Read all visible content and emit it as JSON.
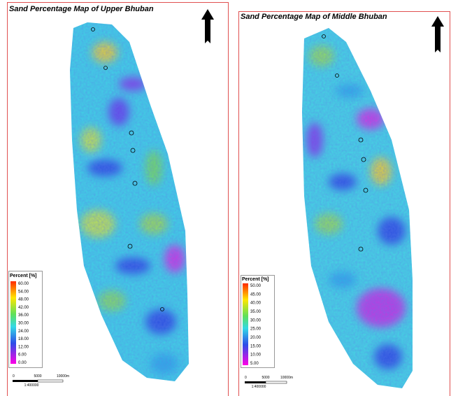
{
  "panels": [
    {
      "title": "Sand Percentage Map of Upper Bhuban",
      "legend": {
        "title": "Percent [%]",
        "labels": [
          "60.00",
          "54.00",
          "48.00",
          "42.00",
          "36.00",
          "30.00",
          "24.00",
          "18.00",
          "12.00",
          "6.00",
          "0.00"
        ]
      },
      "scale": {
        "labels": [
          "0",
          "5000",
          "10000m"
        ],
        "ratio": "1:400000"
      }
    },
    {
      "title": "Sand Percentage Map of Middle Bhuban",
      "legend": {
        "title": "Percent [%]",
        "labels": [
          "50.00",
          "45.00",
          "40.00",
          "35.00",
          "30.00",
          "25.00",
          "20.00",
          "15.00",
          "10.00",
          "5.00"
        ]
      },
      "scale": {
        "labels": [
          "0",
          "5000",
          "10000m"
        ],
        "ratio": "1:400000"
      }
    }
  ]
}
